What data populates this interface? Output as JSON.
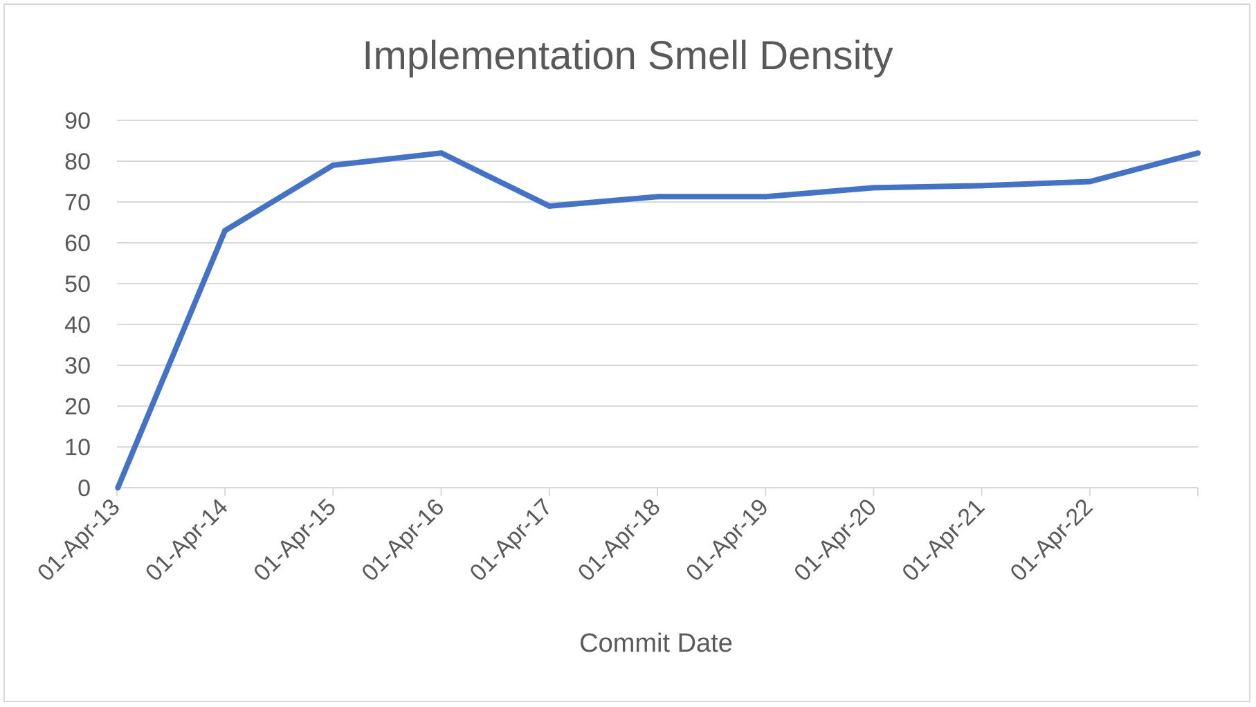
{
  "chart_data": {
    "type": "line",
    "title": "Implementation Smell Density",
    "xlabel": "Commit Date",
    "ylabel": "",
    "ylim": [
      0,
      90
    ],
    "yticks": [
      0,
      10,
      20,
      30,
      40,
      50,
      60,
      70,
      80,
      90
    ],
    "categories": [
      "01-Apr-13",
      "01-Apr-14",
      "01-Apr-15",
      "01-Apr-16",
      "01-Apr-17",
      "01-Apr-18",
      "01-Apr-19",
      "01-Apr-20",
      "01-Apr-21",
      "01-Apr-22"
    ],
    "grid": true,
    "legend": "none",
    "series": [
      {
        "color": "#4472c4",
        "x": [
          "2013-04-04",
          "2014-04-01",
          "2015-04-01",
          "2016-04-01",
          "2017-04-01",
          "2018-04-01",
          "2019-04-01",
          "2020-04-01",
          "2021-04-01",
          "2022-04-01",
          "2023-04-01"
        ],
        "values": [
          0,
          63,
          79,
          82,
          69,
          71.3,
          71.3,
          73.5,
          74,
          75,
          82
        ]
      }
    ]
  }
}
